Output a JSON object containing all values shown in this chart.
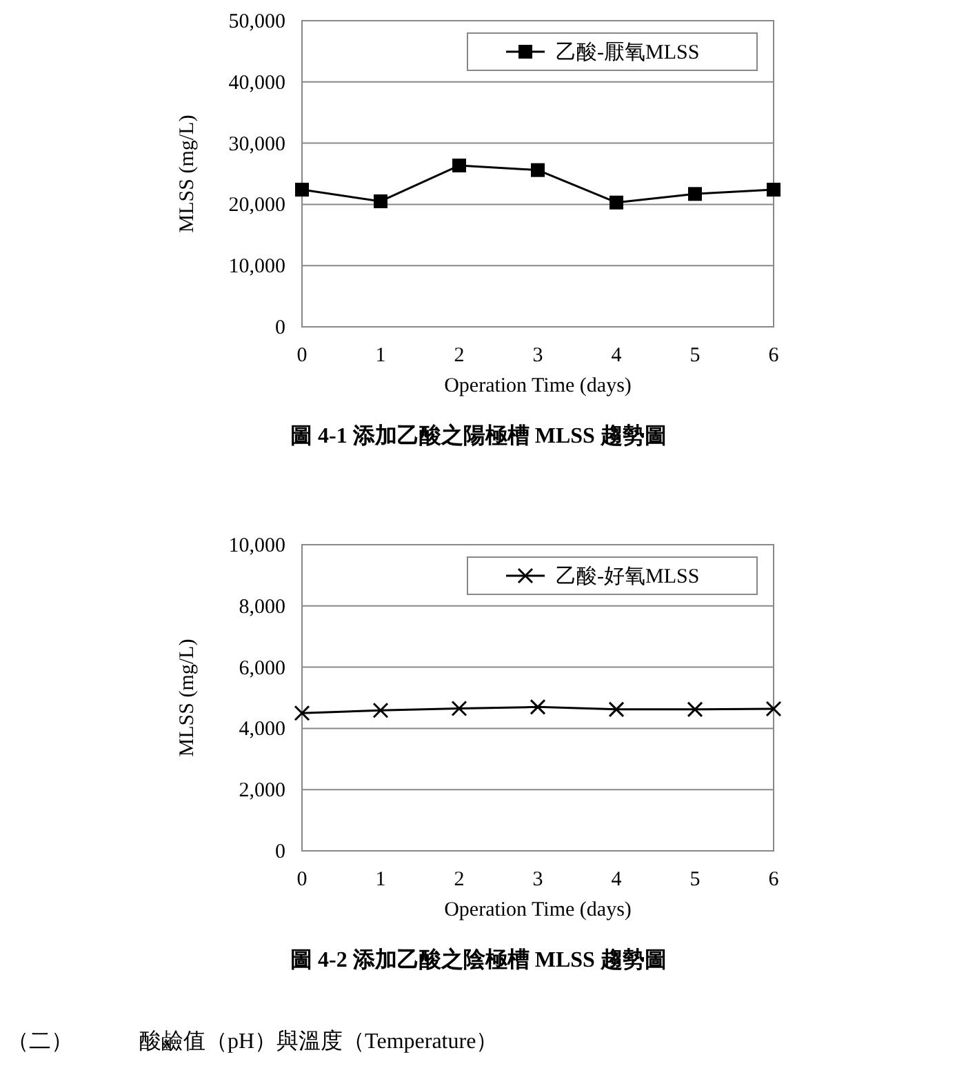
{
  "chart_data": [
    {
      "type": "line",
      "title": "圖 4-1 添加乙酸之陽極槽 MLSS 趨勢圖",
      "xlabel": "Operation Time (days)",
      "ylabel": "MLSS (mg/L)",
      "x": [
        0,
        1,
        2,
        3,
        4,
        5,
        6
      ],
      "series": [
        {
          "name": "乙酸-厭氧MLSS",
          "color": "#000000",
          "marker": "square",
          "values": [
            22400,
            20500,
            26350,
            25600,
            20300,
            21700,
            22400
          ]
        }
      ],
      "xlim": [
        0,
        6
      ],
      "xticks": [
        0,
        1,
        2,
        3,
        4,
        5,
        6
      ],
      "ylim": [
        0,
        50000
      ],
      "yticks": [
        0,
        {
          "value": 10000,
          "label": "10,000"
        },
        {
          "value": 20000,
          "label": "20,000"
        },
        {
          "value": 30000,
          "label": "30,000"
        },
        {
          "value": 40000,
          "label": "40,000"
        },
        {
          "value": 50000,
          "label": "50,000"
        }
      ],
      "grid": "y",
      "legend": "top right",
      "line_style": "solid"
    },
    {
      "type": "line",
      "title": "圖 4-2 添加乙酸之陰極槽 MLSS 趨勢圖",
      "xlabel": "Operation Time (days)",
      "ylabel": "MLSS (mg/L)",
      "x": [
        0,
        1,
        2,
        3,
        4,
        5,
        6
      ],
      "series": [
        {
          "name": "乙酸-好氧MLSS",
          "color": "#000000",
          "marker": "cross",
          "values": [
            4500,
            4590,
            4650,
            4700,
            4620,
            4620,
            4640
          ]
        }
      ],
      "xlim": [
        0,
        6
      ],
      "xticks": [
        0,
        1,
        2,
        3,
        4,
        5,
        6
      ],
      "ylim": [
        0,
        10000
      ],
      "yticks": [
        0,
        {
          "value": 2000,
          "label": "2,000"
        },
        {
          "value": 4000,
          "label": "4,000"
        },
        {
          "value": 6000,
          "label": "6,000"
        },
        {
          "value": 8000,
          "label": "8,000"
        },
        {
          "value": 10000,
          "label": "10,000"
        }
      ],
      "grid": "y",
      "legend": "top right",
      "line_style": "solid",
      "annotations": [
        "（二）　　　酸鹼值（pH）與溫度（Temperature）"
      ]
    }
  ]
}
